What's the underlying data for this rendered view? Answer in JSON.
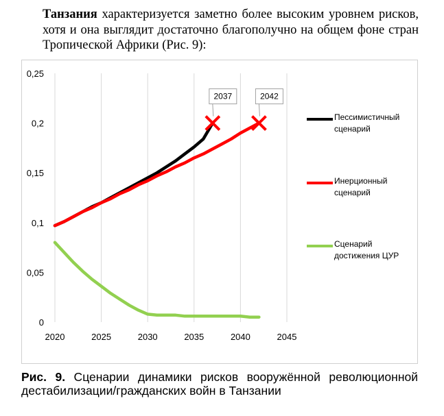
{
  "text": {
    "lead": "Танзания",
    "body": " характеризуется заметно более высоким уровнем рисков, хотя и она выглядит достаточно благополучно на общем фоне стран Тропической Африки (Рис. 9):"
  },
  "caption": {
    "label": "Рис. 9.",
    "text": " Сценарии динамики рисков вооружённой революционной дестабилизации/гражданских войн в Танзании"
  },
  "chart_data": {
    "type": "line",
    "xlim": [
      2020,
      2045
    ],
    "ylim": [
      0,
      0.25
    ],
    "x_ticks": [
      "2020",
      "2025",
      "2030",
      "2035",
      "2040",
      "2045"
    ],
    "y_ticks": [
      "0",
      "0,05",
      "0,1",
      "0,15",
      "0,2",
      "0,25"
    ],
    "grid": "vertical",
    "legend_position": "right",
    "series": [
      {
        "name": "Пессимистичный сценарий",
        "color": "#000000",
        "x": [
          2020,
          2021,
          2022,
          2023,
          2024,
          2025,
          2026,
          2027,
          2028,
          2029,
          2030,
          2031,
          2032,
          2033,
          2034,
          2035,
          2036,
          2037
        ],
        "y": [
          0.097,
          0.101,
          0.106,
          0.111,
          0.116,
          0.12,
          0.125,
          0.13,
          0.135,
          0.14,
          0.145,
          0.15,
          0.156,
          0.162,
          0.169,
          0.176,
          0.184,
          0.2
        ]
      },
      {
        "name": "Инерционный сценарий",
        "color": "#ff0000",
        "x": [
          2020,
          2021,
          2022,
          2023,
          2024,
          2025,
          2026,
          2027,
          2028,
          2029,
          2030,
          2031,
          2032,
          2033,
          2034,
          2035,
          2036,
          2037,
          2038,
          2039,
          2040,
          2041,
          2042
        ],
        "y": [
          0.097,
          0.101,
          0.106,
          0.111,
          0.115,
          0.12,
          0.124,
          0.129,
          0.133,
          0.138,
          0.142,
          0.147,
          0.151,
          0.156,
          0.16,
          0.165,
          0.169,
          0.174,
          0.179,
          0.184,
          0.19,
          0.195,
          0.2
        ]
      },
      {
        "name": "Сценарий достижения ЦУР",
        "color": "#92d050",
        "x": [
          2020,
          2021,
          2022,
          2023,
          2024,
          2025,
          2026,
          2027,
          2028,
          2029,
          2030,
          2031,
          2032,
          2033,
          2034,
          2035,
          2036,
          2037,
          2038,
          2039,
          2040,
          2041,
          2042
        ],
        "y": [
          0.08,
          0.07,
          0.06,
          0.051,
          0.043,
          0.036,
          0.029,
          0.023,
          0.017,
          0.012,
          0.008,
          0.007,
          0.007,
          0.007,
          0.006,
          0.006,
          0.006,
          0.006,
          0.006,
          0.006,
          0.006,
          0.005,
          0.005
        ]
      }
    ],
    "markers": [
      {
        "label": "2037",
        "x": 2037,
        "y": 0.2,
        "color": "#ff0000"
      },
      {
        "label": "2042",
        "x": 2042,
        "y": 0.2,
        "color": "#ff0000"
      }
    ]
  }
}
